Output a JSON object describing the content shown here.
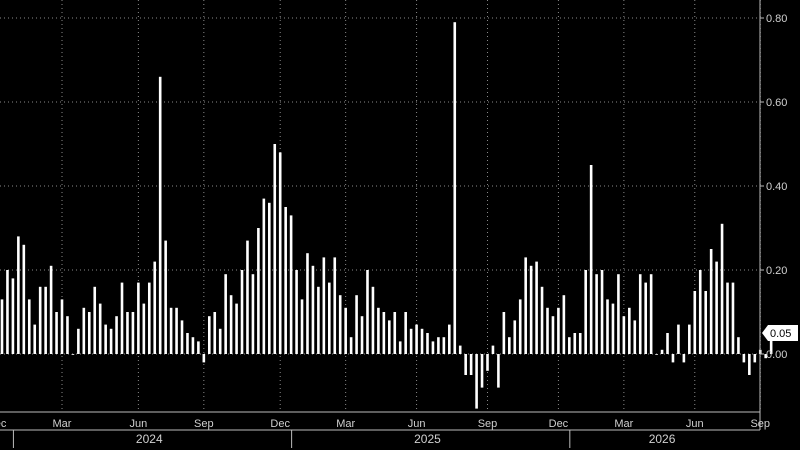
{
  "chart_data": {
    "type": "bar",
    "title": "",
    "xlabel": "",
    "ylabel": "",
    "ylim": [
      -0.13,
      0.84
    ],
    "grid": true,
    "colors": {
      "background": "#000000",
      "bar": "#ffffff",
      "grid": "#8a8a8a",
      "text": "#d0d0d0",
      "last_value_box": "#ffffff"
    },
    "y_ticks": [
      {
        "value": 0.8,
        "label": "0.80"
      },
      {
        "value": 0.6,
        "label": "0.60"
      },
      {
        "value": 0.4,
        "label": "0.40"
      },
      {
        "value": 0.2,
        "label": "0.20"
      },
      {
        "value": 0.0,
        "label": "0.00"
      }
    ],
    "last_value_label": "0.05",
    "last_value": 0.05,
    "x_ticks": [
      {
        "i": -1,
        "label": "Dec"
      },
      {
        "i": 11,
        "label": "Mar"
      },
      {
        "i": 25,
        "label": "Jun"
      },
      {
        "i": 37,
        "label": "Sep"
      },
      {
        "i": 51,
        "label": "Dec"
      },
      {
        "i": 63,
        "label": "Mar"
      },
      {
        "i": 76,
        "label": "Jun"
      },
      {
        "i": 89,
        "label": "Sep"
      },
      {
        "i": 102,
        "label": "Dec"
      },
      {
        "i": 114,
        "label": "Mar"
      },
      {
        "i": 127,
        "label": "Jun"
      },
      {
        "i": 139,
        "label": "Sep"
      }
    ],
    "year_labels": [
      {
        "i": 27,
        "label": "2024"
      },
      {
        "i": 78,
        "label": "2025"
      },
      {
        "i": 121,
        "label": "2026"
      }
    ],
    "year_separators": [
      2,
      53,
      104
    ],
    "values": [
      0.13,
      0.2,
      0.18,
      0.28,
      0.26,
      0.13,
      0.07,
      0.16,
      0.16,
      0.21,
      0.1,
      0.13,
      0.09,
      0.0,
      0.06,
      0.11,
      0.1,
      0.16,
      0.12,
      0.07,
      0.06,
      0.09,
      0.17,
      0.1,
      0.1,
      0.17,
      0.12,
      0.17,
      0.22,
      0.66,
      0.27,
      0.11,
      0.11,
      0.08,
      0.05,
      0.04,
      0.03,
      -0.02,
      0.09,
      0.1,
      0.06,
      0.19,
      0.14,
      0.12,
      0.2,
      0.27,
      0.19,
      0.3,
      0.37,
      0.36,
      0.5,
      0.48,
      0.35,
      0.33,
      0.2,
      0.13,
      0.24,
      0.21,
      0.16,
      0.23,
      0.17,
      0.23,
      0.14,
      0.11,
      0.04,
      0.14,
      0.09,
      0.2,
      0.16,
      0.11,
      0.1,
      0.08,
      0.1,
      0.03,
      0.1,
      0.06,
      0.07,
      0.06,
      0.05,
      0.03,
      0.04,
      0.04,
      0.07,
      0.79,
      0.02,
      -0.05,
      -0.05,
      -0.13,
      -0.08,
      -0.04,
      0.02,
      -0.08,
      0.1,
      0.04,
      0.08,
      0.13,
      0.23,
      0.21,
      0.22,
      0.16,
      0.11,
      0.09,
      0.11,
      0.14,
      0.04,
      0.05,
      0.05,
      0.2,
      0.45,
      0.19,
      0.2,
      0.13,
      0.12,
      0.19,
      0.09,
      0.11,
      0.08,
      0.19,
      0.17,
      0.19,
      0.0,
      0.01,
      0.05,
      -0.02,
      0.07,
      -0.02,
      0.07,
      0.15,
      0.2,
      0.15,
      0.25,
      0.22,
      0.31,
      0.17,
      0.17,
      0.04,
      -0.02,
      -0.05,
      -0.02,
      0.01,
      -0.01,
      0.05
    ]
  }
}
